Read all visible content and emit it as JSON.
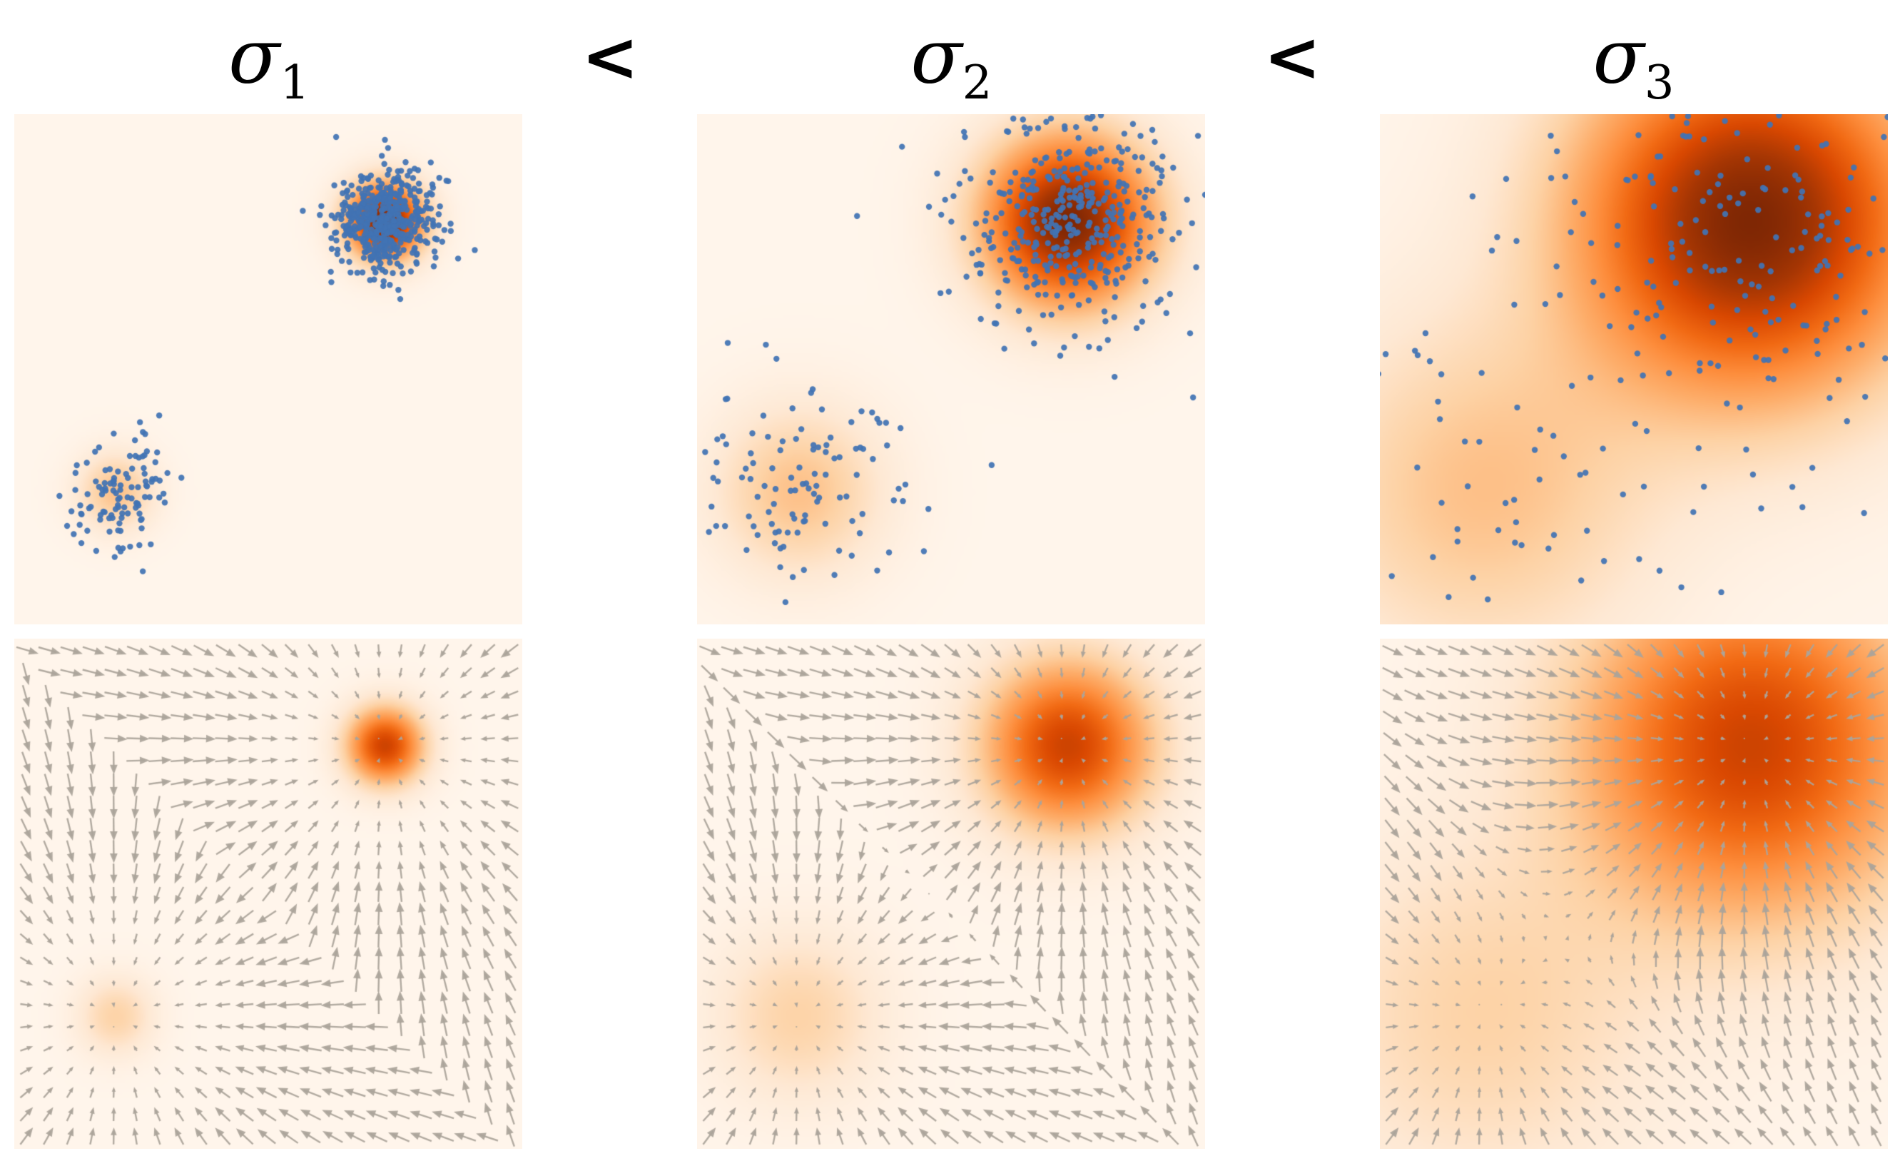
{
  "page": {
    "background": "#ffffff",
    "description": "Figure: Gaussian mixture perturbed by increasing noise levels; top row shows samples over perturbed densities, bottom row shows score vector fields"
  },
  "header": {
    "titles": [
      {
        "symbol": "σ",
        "subscript": "1"
      },
      {
        "symbol": "σ",
        "subscript": "2"
      },
      {
        "symbol": "σ",
        "subscript": "3"
      }
    ],
    "separator": "<"
  },
  "chart_data": {
    "type": "heatmap",
    "title": "sigma_1 < sigma_2 < sigma_3",
    "rows": [
      {
        "id": "samples",
        "content": "scatter points over perturbed density heatmap"
      },
      {
        "id": "score",
        "content": "score vector field (quiver) over perturbed density heatmap"
      }
    ],
    "axis_range": [
      0,
      1
    ],
    "grid": false,
    "legend": false,
    "mixture": {
      "modes": [
        {
          "center": [
            0.73,
            0.79
          ],
          "weight": 0.8
        },
        {
          "center": [
            0.2,
            0.26
          ],
          "weight": 0.2
        }
      ]
    },
    "columns": [
      {
        "label": "sigma_1",
        "sigma": 0.05,
        "n_samples": 620,
        "seed": 7
      },
      {
        "label": "sigma_2",
        "sigma": 0.11,
        "n_samples": 520,
        "seed": 11
      },
      {
        "label": "sigma_3",
        "sigma": 0.23,
        "n_samples": 330,
        "seed": 13
      }
    ],
    "colormap": [
      "#fff5eb",
      "#fee8d3",
      "#fdd2a5",
      "#fdae6b",
      "#fd8d3c",
      "#f16913",
      "#d94801",
      "#a63603",
      "#7f2704"
    ],
    "point_color": "#4273b4",
    "arrow_color": "#aba49a",
    "quiver_grid": 23,
    "density_gamma": 0.85,
    "score_row_density_scale": 0.78
  }
}
